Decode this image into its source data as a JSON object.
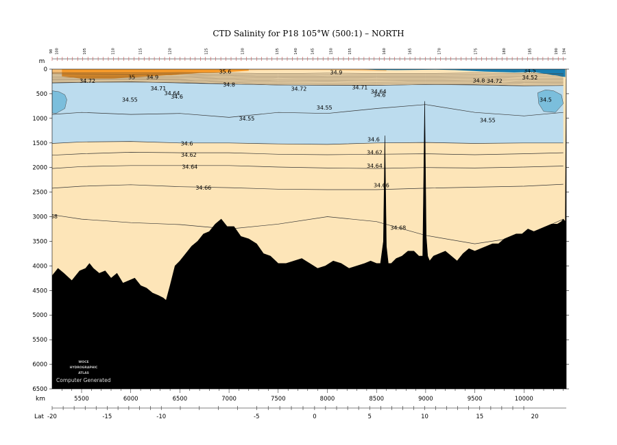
{
  "chart_data": {
    "type": "section-contour",
    "title": "CTD Salinity for P18 105°W (500:1) – NORTH",
    "y_unit": "m",
    "x_unit": "km",
    "lat_label": "Lat",
    "xlim": [
      5200,
      10430
    ],
    "ylim": [
      0,
      6500
    ],
    "km_ticks": [
      5500,
      6000,
      6500,
      7000,
      7500,
      8000,
      8500,
      9000,
      9500,
      10000
    ],
    "depth_ticks": [
      0,
      500,
      1000,
      1500,
      2000,
      2500,
      3000,
      3500,
      4000,
      4500,
      5000,
      5500,
      6000,
      6500
    ],
    "lat_ticks": [
      {
        "label": "-20",
        "km": 5200
      },
      {
        "label": "-15",
        "km": 5760
      },
      {
        "label": "-10",
        "km": 6310
      },
      {
        "label": "-5",
        "km": 7280
      },
      {
        "label": "0",
        "km": 7870
      },
      {
        "label": "5",
        "km": 8430
      },
      {
        "label": "10",
        "km": 8990
      },
      {
        "label": "15",
        "km": 9550
      },
      {
        "label": "20",
        "km": 10110
      }
    ],
    "station_labels": [
      {
        "label": "98",
        "km": 5200
      },
      {
        "label": "100",
        "km": 5260
      },
      {
        "label": "105",
        "km": 5540
      },
      {
        "label": "110",
        "km": 5830
      },
      {
        "label": "115",
        "km": 6110
      },
      {
        "label": "120",
        "km": 6410
      },
      {
        "label": "125",
        "km": 6780
      },
      {
        "label": "130",
        "km": 7150
      },
      {
        "label": "135",
        "km": 7500
      },
      {
        "label": "140",
        "km": 7690
      },
      {
        "label": "145",
        "km": 7860
      },
      {
        "label": "150",
        "km": 8050
      },
      {
        "label": "155",
        "km": 8240
      },
      {
        "label": "160",
        "km": 8590
      },
      {
        "label": "165",
        "km": 8850
      },
      {
        "label": "170",
        "km": 9150
      },
      {
        "label": "175",
        "km": 9520
      },
      {
        "label": "180",
        "km": 9810
      },
      {
        "label": "185",
        "km": 10070
      },
      {
        "label": "190",
        "km": 10340
      },
      {
        "label": "194",
        "km": 10420
      }
    ],
    "fill_levels": [
      {
        "min": 0,
        "max": 34.5,
        "color": "#1a7fb2"
      },
      {
        "min": 34.5,
        "max": 34.55,
        "color": "#7bbedc"
      },
      {
        "min": 34.55,
        "max": 34.6,
        "color": "#bcdcee"
      },
      {
        "min": 34.6,
        "max": 35.0,
        "color": "#fde5b8"
      },
      {
        "min": 35.0,
        "max": 35.4,
        "color": "#f8c077"
      },
      {
        "min": 35.4,
        "max": 40,
        "color": "#f59a2b"
      }
    ],
    "contours": [
      {
        "value": 34.55,
        "depths_km": [
          5200,
          5500,
          6000,
          6500,
          7000,
          7500,
          8000,
          8500,
          9000,
          9500,
          10000,
          10400
        ],
        "depths": [
          920,
          880,
          920,
          900,
          980,
          880,
          900,
          800,
          720,
          880,
          950,
          880
        ]
      },
      {
        "value": 34.6,
        "depths_km": [
          5200,
          5500,
          6000,
          6500,
          7000,
          7500,
          8000,
          8500,
          9000,
          9500,
          10000,
          10400
        ],
        "depths": [
          1510,
          1480,
          1470,
          1500,
          1500,
          1520,
          1530,
          1500,
          1490,
          1510,
          1500,
          1500
        ]
      },
      {
        "value": 34.62,
        "depths_km": [
          5200,
          5500,
          6000,
          6500,
          7000,
          7500,
          8000,
          8500,
          9000,
          9500,
          10000,
          10400
        ],
        "depths": [
          1750,
          1720,
          1690,
          1700,
          1700,
          1730,
          1740,
          1730,
          1720,
          1740,
          1720,
          1700
        ]
      },
      {
        "value": 34.64,
        "depths_km": [
          5200,
          5500,
          6000,
          6500,
          7000,
          7500,
          8000,
          8500,
          9000,
          9500,
          10000,
          10400
        ],
        "depths": [
          2020,
          1980,
          1960,
          1960,
          1960,
          1990,
          2010,
          2020,
          2000,
          2010,
          1990,
          1970
        ]
      },
      {
        "value": 34.66,
        "depths_km": [
          5200,
          5500,
          6000,
          6500,
          7000,
          7500,
          8000,
          8500,
          9000,
          9500,
          10000,
          10400
        ],
        "depths": [
          2420,
          2380,
          2350,
          2390,
          2410,
          2440,
          2450,
          2450,
          2420,
          2400,
          2380,
          2340
        ]
      },
      {
        "value": 34.68,
        "depths_km": [
          5200,
          5500,
          6000,
          6500,
          7000,
          7500,
          8000,
          8500,
          9000,
          9500,
          10000,
          10400
        ],
        "depths": [
          2960,
          3050,
          3120,
          3160,
          3250,
          3150,
          3000,
          3100,
          3380,
          3550,
          3400,
          3050
        ]
      },
      {
        "value": 34.8,
        "depths_km": [
          5200,
          5500,
          6000,
          6500,
          7000,
          7500,
          8000,
          8500,
          9000,
          9500,
          10000,
          10400
        ],
        "depths": [
          280,
          270,
          260,
          280,
          300,
          320,
          330,
          330,
          310,
          320,
          340,
          330
        ]
      }
    ],
    "contour_labels": [
      {
        "text": "34.55",
        "km": 5990,
        "depth": 620
      },
      {
        "text": "34.55",
        "km": 7970,
        "depth": 780
      },
      {
        "text": "34.55",
        "km": 7180,
        "depth": 1000
      },
      {
        "text": "34.55",
        "km": 9630,
        "depth": 1040
      },
      {
        "text": "34.5",
        "km": 10220,
        "depth": 620
      },
      {
        "text": "34.6",
        "km": 6570,
        "depth": 1510
      },
      {
        "text": "34.62",
        "km": 6590,
        "depth": 1740
      },
      {
        "text": "34.64",
        "km": 6600,
        "depth": 1980
      },
      {
        "text": "34.66",
        "km": 6740,
        "depth": 2410
      },
      {
        "text": "34.6",
        "km": 8470,
        "depth": 1430
      },
      {
        "text": "34.62",
        "km": 8480,
        "depth": 1690
      },
      {
        "text": "34.64",
        "km": 8480,
        "depth": 1960
      },
      {
        "text": "34.66",
        "km": 8550,
        "depth": 2360
      },
      {
        "text": "34.68",
        "km": 8720,
        "depth": 3220
      },
      {
        "text": "68",
        "km": 5220,
        "depth": 2990
      },
      {
        "text": "34.8",
        "km": 7000,
        "depth": 310
      },
      {
        "text": "34.9",
        "km": 8090,
        "depth": 60
      },
      {
        "text": "35",
        "km": 6010,
        "depth": 160
      },
      {
        "text": "34.9",
        "km": 6220,
        "depth": 160
      },
      {
        "text": "35.6",
        "km": 6960,
        "depth": 50
      },
      {
        "text": "34.8",
        "km": 9540,
        "depth": 230
      }
    ],
    "crowded_labels": [
      {
        "text": "34.72",
        "km": 5560,
        "depth": 240
      },
      {
        "text": "34.71",
        "km": 6280,
        "depth": 390
      },
      {
        "text": "34.64",
        "km": 6420,
        "depth": 490
      },
      {
        "text": "34.6",
        "km": 6470,
        "depth": 560
      },
      {
        "text": "34.72",
        "km": 7710,
        "depth": 400
      },
      {
        "text": "34.71",
        "km": 8330,
        "depth": 370
      },
      {
        "text": "34.64",
        "km": 8520,
        "depth": 450
      },
      {
        "text": "34.6",
        "km": 8530,
        "depth": 520
      },
      {
        "text": "34.72",
        "km": 9700,
        "depth": 240
      },
      {
        "text": "34.52",
        "km": 10060,
        "depth": 170
      },
      {
        "text": "34.5",
        "km": 10060,
        "depth": 30
      }
    ],
    "bathymetry_km": [
      5200,
      5260,
      5320,
      5400,
      5480,
      5540,
      5580,
      5620,
      5680,
      5740,
      5800,
      5860,
      5920,
      5980,
      6040,
      6100,
      6160,
      6220,
      6280,
      6330,
      6360,
      6400,
      6450,
      6500,
      6560,
      6620,
      6680,
      6740,
      6800,
      6860,
      6920,
      6980,
      7050,
      7120,
      7200,
      7280,
      7350,
      7420,
      7500,
      7580,
      7660,
      7740,
      7820,
      7900,
      7980,
      8060,
      8140,
      8220,
      8300,
      8380,
      8440,
      8500,
      8540,
      8570,
      8585,
      8600,
      8620,
      8650,
      8700,
      8760,
      8820,
      8880,
      8930,
      8970,
      8990,
      9005,
      9020,
      9040,
      9080,
      9140,
      9200,
      9260,
      9320,
      9380,
      9440,
      9500,
      9560,
      9620,
      9680,
      9740,
      9800,
      9860,
      9920,
      9980,
      10040,
      10100,
      10160,
      10220,
      10280,
      10340,
      10380,
      10400,
      10420,
      10430
    ],
    "bathymetry_depth": [
      4200,
      4050,
      4150,
      4300,
      4100,
      4050,
      3950,
      4050,
      4150,
      4100,
      4250,
      4150,
      4350,
      4300,
      4250,
      4400,
      4450,
      4550,
      4600,
      4650,
      4700,
      4400,
      4000,
      3900,
      3750,
      3600,
      3500,
      3350,
      3300,
      3150,
      3050,
      3200,
      3200,
      3400,
      3450,
      3550,
      3750,
      3800,
      3950,
      3950,
      3900,
      3850,
      3950,
      4050,
      4000,
      3900,
      3950,
      4050,
      4000,
      3950,
      3900,
      3950,
      3950,
      3500,
      1350,
      3600,
      3950,
      3950,
      3850,
      3800,
      3700,
      3700,
      3800,
      3800,
      650,
      3400,
      3800,
      3900,
      3800,
      3750,
      3700,
      3800,
      3900,
      3750,
      3650,
      3700,
      3650,
      3600,
      3550,
      3550,
      3450,
      3400,
      3350,
      3350,
      3250,
      3300,
      3250,
      3200,
      3150,
      3150,
      3100,
      3050,
      3100,
      200
    ],
    "watermark": [
      "WOCE",
      "HYDROGRAPHIC",
      "ATLAS"
    ],
    "credit_text": "Computer Generated"
  }
}
